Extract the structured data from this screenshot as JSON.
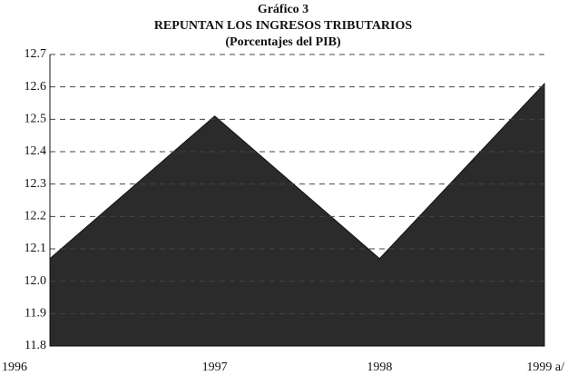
{
  "chart_data": {
    "type": "area",
    "title": "Gráfico 3",
    "subtitle": "REPUNTAN LOS INGRESOS TRIBUTARIOS",
    "y_label": "(Porcentajes del PIB)",
    "categories": [
      "1996",
      "1997",
      "1998",
      "1999 a/"
    ],
    "values": [
      12.07,
      12.51,
      12.07,
      12.61
    ],
    "color": "#2b2b2b",
    "ylim": [
      11.8,
      12.7
    ],
    "yticks": [
      11.8,
      11.9,
      {
        "value": 12,
        "label": "12.0"
      },
      12.1,
      12.2,
      12.3,
      12.4,
      12.5,
      12.6,
      12.7
    ],
    "grid": true
  }
}
